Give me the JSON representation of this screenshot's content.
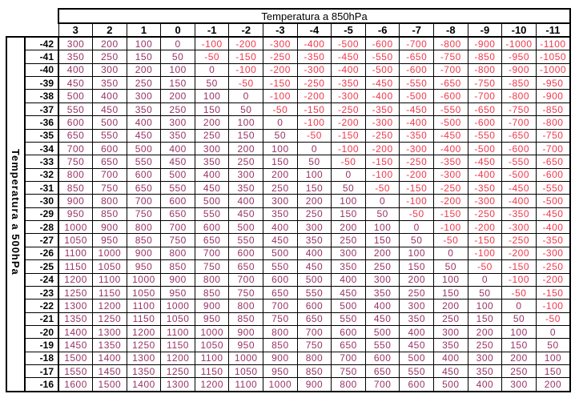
{
  "table": {
    "title": "Temperatura a 850hPa",
    "side_label": "Temperatura a 500hPa",
    "column_headers": [
      "3",
      "2",
      "1",
      "0",
      "-1",
      "-2",
      "-3",
      "-4",
      "-5",
      "-6",
      "-7",
      "-8",
      "-9",
      "-10",
      "-11"
    ],
    "row_headers": [
      "-42",
      "-41",
      "-40",
      "-39",
      "-38",
      "-37",
      "-36",
      "-35",
      "-34",
      "-33",
      "-32",
      "-31",
      "-30",
      "-29",
      "-28",
      "-27",
      "-26",
      "-25",
      "-24",
      "-23",
      "-22",
      "-21",
      "-20",
      "-19",
      "-18",
      "-17",
      "-16"
    ]
  },
  "colors": {
    "positive_value": "#993366",
    "negative_value": "#f0384c",
    "header_text": "#000000",
    "border": "#000000",
    "background": "#ffffff"
  },
  "chart_data": {
    "type": "table",
    "title": "Temperatura a 850hPa",
    "column_axis_label": "Temperatura a 850hPa",
    "row_axis_label": "Temperatura a 500hPa",
    "columns": [
      3,
      2,
      1,
      0,
      -1,
      -2,
      -3,
      -4,
      -5,
      -6,
      -7,
      -8,
      -9,
      -10,
      -11
    ],
    "row_labels": [
      -42,
      -41,
      -40,
      -39,
      -38,
      -37,
      -36,
      -35,
      -34,
      -33,
      -32,
      -31,
      -30,
      -29,
      -28,
      -27,
      -26,
      -25,
      -24,
      -23,
      -22,
      -21,
      -20,
      -19,
      -18,
      -17,
      -16
    ],
    "values": [
      [
        300,
        200,
        100,
        0,
        -100,
        -200,
        -300,
        -400,
        -500,
        -600,
        -700,
        -800,
        -900,
        -1000,
        -1100
      ],
      [
        350,
        250,
        150,
        50,
        -50,
        -150,
        -250,
        -350,
        -450,
        -550,
        -650,
        -750,
        -850,
        -950,
        -1050
      ],
      [
        400,
        300,
        200,
        100,
        0,
        -100,
        -200,
        -300,
        -400,
        -500,
        -600,
        -700,
        -800,
        -900,
        -1000
      ],
      [
        450,
        350,
        250,
        150,
        50,
        -50,
        -150,
        -250,
        -350,
        -450,
        -550,
        -650,
        -750,
        -850,
        -950
      ],
      [
        500,
        400,
        300,
        200,
        100,
        0,
        -100,
        -200,
        -300,
        -400,
        -500,
        -600,
        -700,
        -800,
        -900
      ],
      [
        550,
        450,
        350,
        250,
        150,
        50,
        -50,
        -150,
        -250,
        -350,
        -450,
        -550,
        -650,
        -750,
        -850
      ],
      [
        600,
        500,
        400,
        300,
        200,
        100,
        0,
        -100,
        -200,
        -300,
        -400,
        -500,
        -600,
        -700,
        -800
      ],
      [
        650,
        550,
        450,
        350,
        250,
        150,
        50,
        -50,
        -150,
        -250,
        -350,
        -450,
        -550,
        -650,
        -750
      ],
      [
        700,
        600,
        500,
        400,
        300,
        200,
        100,
        0,
        -100,
        -200,
        -300,
        -400,
        -500,
        -600,
        -700
      ],
      [
        750,
        650,
        550,
        450,
        350,
        250,
        150,
        50,
        -50,
        -150,
        -250,
        -350,
        -450,
        -550,
        -650
      ],
      [
        800,
        700,
        600,
        500,
        400,
        300,
        200,
        100,
        0,
        -100,
        -200,
        -300,
        -400,
        -500,
        -600
      ],
      [
        850,
        750,
        650,
        550,
        450,
        350,
        250,
        150,
        50,
        -50,
        -150,
        -250,
        -350,
        -450,
        -550
      ],
      [
        900,
        800,
        700,
        600,
        500,
        400,
        300,
        200,
        100,
        0,
        -100,
        -200,
        -300,
        -400,
        -500
      ],
      [
        950,
        850,
        750,
        650,
        550,
        450,
        350,
        250,
        150,
        50,
        -50,
        -150,
        -250,
        -350,
        -450
      ],
      [
        1000,
        900,
        800,
        700,
        600,
        500,
        400,
        300,
        200,
        100,
        0,
        -100,
        -200,
        -300,
        -400
      ],
      [
        1050,
        950,
        850,
        750,
        650,
        550,
        450,
        350,
        250,
        150,
        50,
        -50,
        -150,
        -250,
        -350
      ],
      [
        1100,
        1000,
        900,
        800,
        700,
        600,
        500,
        400,
        300,
        200,
        100,
        0,
        -100,
        -200,
        -300
      ],
      [
        1150,
        1050,
        950,
        850,
        750,
        650,
        550,
        450,
        350,
        250,
        150,
        50,
        -50,
        -150,
        -250
      ],
      [
        1200,
        1100,
        1000,
        900,
        800,
        700,
        600,
        500,
        400,
        300,
        200,
        100,
        0,
        -100,
        -200
      ],
      [
        1250,
        1150,
        1050,
        950,
        850,
        750,
        650,
        550,
        450,
        350,
        250,
        150,
        50,
        -50,
        -150
      ],
      [
        1300,
        1200,
        1100,
        1000,
        900,
        800,
        700,
        600,
        500,
        400,
        300,
        200,
        100,
        0,
        -100
      ],
      [
        1350,
        1250,
        1150,
        1050,
        950,
        850,
        750,
        650,
        550,
        450,
        350,
        250,
        150,
        50,
        -50
      ],
      [
        1400,
        1300,
        1200,
        1100,
        1000,
        900,
        800,
        700,
        600,
        500,
        400,
        300,
        200,
        100,
        0
      ],
      [
        1450,
        1350,
        1250,
        1150,
        1050,
        950,
        850,
        750,
        650,
        550,
        450,
        350,
        250,
        150,
        50
      ],
      [
        1500,
        1400,
        1300,
        1200,
        1100,
        1000,
        900,
        800,
        700,
        600,
        500,
        400,
        300,
        200,
        100
      ],
      [
        1550,
        1450,
        1350,
        1250,
        1150,
        1050,
        950,
        850,
        750,
        650,
        550,
        450,
        350,
        250,
        150
      ],
      [
        1600,
        1500,
        1400,
        1300,
        1200,
        1100,
        1000,
        900,
        800,
        700,
        600,
        500,
        400,
        300,
        200
      ]
    ]
  }
}
